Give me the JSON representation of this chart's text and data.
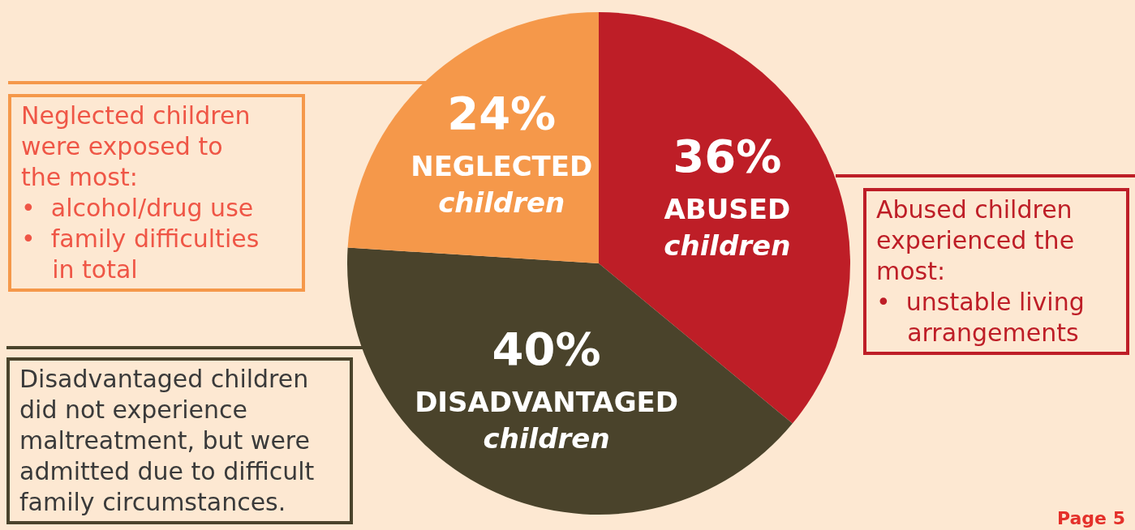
{
  "chart_data": {
    "type": "pie",
    "categories": [
      "ABUSED children",
      "DISADVANTAGED children",
      "NEGLECTED children"
    ],
    "values": [
      36,
      40,
      24
    ],
    "value_labels": [
      "36%",
      "40%",
      "24%"
    ],
    "colors": [
      "#be1e27",
      "#4a432b",
      "#f5984a"
    ],
    "annotations": [
      "Neglected children\nwere exposed to\nthe most:\n•  alcohol/drug use\n•  family difficulties\n    in total",
      "Abused children\nexperienced the\nmost:\n•  unstable living\n    arrangements",
      "Disadvantaged children\ndid not experience\nmaltreatment, but were\nadmitted due to difficult\nfamily circumstances.",
      "Page 5"
    ]
  }
}
